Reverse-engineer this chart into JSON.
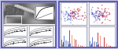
{
  "outer_bg": "#c8c8e0",
  "left_panel_bg": "#e8e8f0",
  "right_panel_bg": "#e8e8f4",
  "border_color": "#4444bb",
  "inner_border": "#8888aa",
  "left_top_bg": "#d8d8e8",
  "scatter_colors": [
    "#cc2222",
    "#dd6688",
    "#aa44aa",
    "#4455cc",
    "#7799cc",
    "#555555"
  ],
  "bar_red1": "#cc2222",
  "bar_red2": "#ee8877",
  "bar_blue1": "#5577cc",
  "bar_blue2": "#99aadd",
  "bar_gray": "#777777",
  "line_color1": "#333333",
  "line_color2": "#666666",
  "afm_bg": "#b0b8c8"
}
